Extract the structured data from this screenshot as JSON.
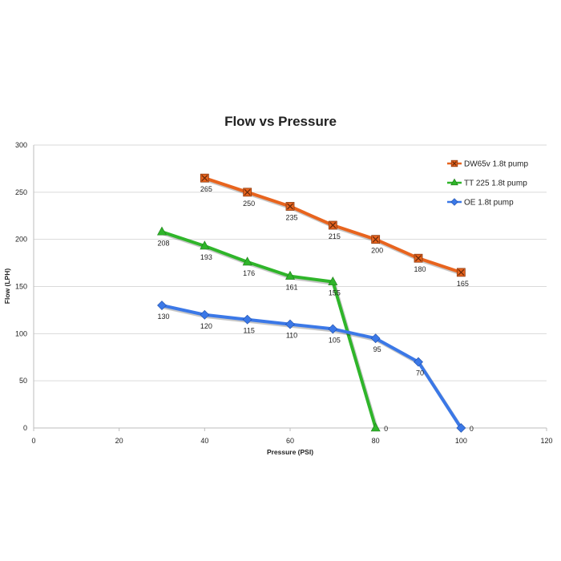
{
  "chart_data": {
    "type": "line",
    "title": "Flow vs Pressure",
    "xlabel": "Pressure (PSI)",
    "ylabel": "Flow (LPH)",
    "xlim": [
      0,
      120
    ],
    "ylim": [
      0,
      300
    ],
    "xticks": [
      "0",
      "20",
      "40",
      "60",
      "80",
      "100",
      "120"
    ],
    "yticks": [
      "0",
      "50",
      "100",
      "150",
      "200",
      "250",
      "300"
    ],
    "grid": "horizontal",
    "legend": "top-right",
    "series": [
      {
        "name": "DW65v 1.8t pump",
        "color": "#e8641e",
        "marker": "square-x",
        "x": [
          40,
          50,
          60,
          70,
          80,
          90,
          100
        ],
        "y": [
          265,
          250,
          235,
          215,
          200,
          180,
          165
        ],
        "labels": [
          "265",
          "250",
          "235",
          "215",
          "200",
          "180",
          "165"
        ]
      },
      {
        "name": "TT 225 1.8t pump",
        "color": "#2fb52a",
        "marker": "triangle",
        "x": [
          30,
          40,
          50,
          60,
          70,
          80
        ],
        "y": [
          208,
          193,
          176,
          161,
          155,
          0
        ],
        "labels": [
          "208",
          "193",
          "176",
          "161",
          "155",
          "0"
        ]
      },
      {
        "name": "OE 1.8t pump",
        "color": "#3b78e7",
        "marker": "diamond",
        "x": [
          30,
          40,
          50,
          60,
          70,
          80,
          90,
          100
        ],
        "y": [
          130,
          120,
          115,
          110,
          105,
          95,
          70,
          0
        ],
        "labels": [
          "130",
          "120",
          "115",
          "110",
          "105",
          "95",
          "70",
          "0"
        ]
      }
    ]
  }
}
